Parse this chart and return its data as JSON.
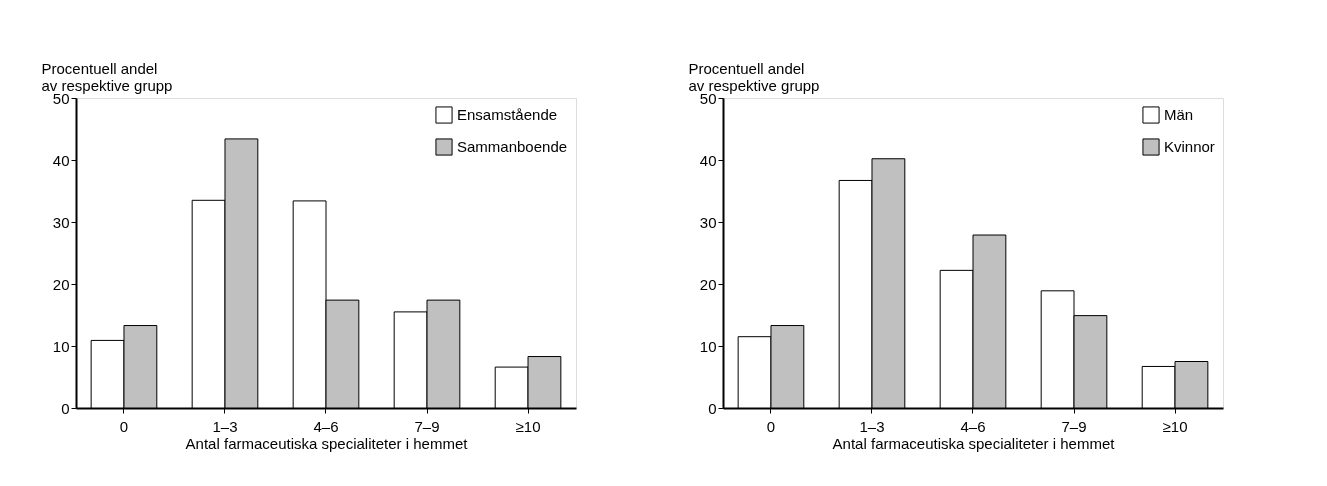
{
  "chart_data": [
    {
      "type": "bar",
      "ylabel": "Procentuell andel\nav respektive grupp",
      "xlabel": "Antal farmaceutiska specialiteter i hemmet",
      "categories": [
        "0",
        "1–3",
        "4–6",
        "7–9",
        "≥10"
      ],
      "ylim": [
        0,
        50
      ],
      "yticks": [
        0,
        10,
        20,
        30,
        40,
        50
      ],
      "grid": false,
      "legend": "top right",
      "series": [
        {
          "name": "Ensamstående",
          "color": "#ffffff",
          "values": [
            10.9,
            33.5,
            33.4,
            15.5,
            6.6
          ]
        },
        {
          "name": "Sammanboende",
          "color": "#c0c0c0",
          "values": [
            13.3,
            43.4,
            17.4,
            17.4,
            8.3
          ]
        }
      ]
    },
    {
      "type": "bar",
      "ylabel": "Procentuell andel\nav respektive grupp",
      "xlabel": "Antal farmaceutiska specialiteter i hemmet",
      "categories": [
        "0",
        "1–3",
        "4–6",
        "7–9",
        "≥10"
      ],
      "ylim": [
        0,
        50
      ],
      "yticks": [
        0,
        10,
        20,
        30,
        40,
        50
      ],
      "grid": false,
      "legend": "top right",
      "series": [
        {
          "name": "Män",
          "color": "#ffffff",
          "values": [
            11.5,
            36.7,
            22.2,
            18.9,
            6.7
          ]
        },
        {
          "name": "Kvinnor",
          "color": "#c0c0c0",
          "values": [
            13.3,
            40.2,
            27.9,
            14.9,
            7.5
          ]
        }
      ]
    }
  ]
}
